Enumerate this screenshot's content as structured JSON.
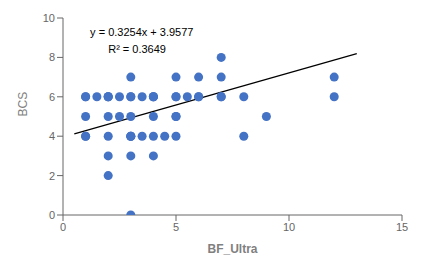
{
  "chart_data": {
    "type": "scatter",
    "xlabel": "BF_Ultra",
    "ylabel": "BCS",
    "x": [
      1,
      1,
      1,
      1,
      1,
      1.5,
      2,
      2,
      2,
      2,
      2,
      2,
      2,
      2.5,
      2.5,
      3,
      3,
      3,
      3,
      3,
      3,
      3,
      3,
      3,
      3.5,
      3.5,
      4,
      4,
      4,
      4,
      4,
      4,
      4.5,
      5,
      5,
      5,
      5,
      5,
      5,
      5.5,
      6,
      6,
      6,
      7,
      7,
      7,
      7,
      8,
      8,
      9,
      12,
      12
    ],
    "values": [
      6,
      5,
      4,
      6,
      4,
      6,
      2,
      4,
      5,
      6,
      6,
      6,
      3,
      5,
      6,
      0,
      4,
      4,
      5,
      6,
      6,
      7,
      3,
      4,
      6,
      4,
      6,
      5,
      4,
      6,
      6,
      3,
      4,
      5,
      6,
      6,
      7,
      5,
      4,
      6,
      6,
      7,
      6,
      8,
      7,
      6,
      6,
      4,
      6,
      5,
      7,
      6
    ],
    "color": "#4472C4",
    "trendline": {
      "type": "line",
      "x": [
        0.5,
        13
      ],
      "values": [
        4.1204,
        8.1879
      ],
      "color": "#000000"
    },
    "annotations": [
      {
        "text": "y = 0.3254x + 3.9577",
        "x": 1.2,
        "y": 9.3
      },
      {
        "text": "R² = 0.3649",
        "x": 2.0,
        "y": 8.4
      }
    ],
    "xlim": [
      0,
      15
    ],
    "ylim": [
      0,
      10
    ],
    "xticks": [
      0,
      5,
      10,
      15
    ],
    "yticks": [
      0,
      2,
      4,
      6,
      8,
      10
    ],
    "grid": false
  }
}
